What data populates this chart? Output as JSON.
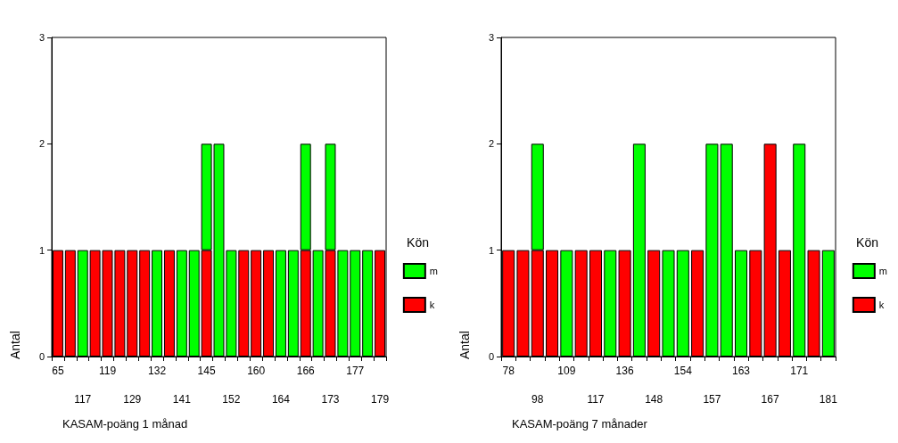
{
  "chart_data": [
    {
      "type": "bar",
      "stacked": true,
      "xlabel": "KASAM-poäng 1 månad",
      "ylabel": "Antal",
      "legend_title": "Kön",
      "legend": "right",
      "grid": false,
      "categories": [
        "65",
        null,
        "117",
        null,
        "119",
        null,
        "129",
        null,
        "132",
        null,
        "141",
        null,
        "145",
        null,
        "152",
        null,
        "160",
        null,
        "164",
        null,
        "166",
        null,
        "173",
        null,
        "177",
        null,
        "179"
      ],
      "ylim": [
        0,
        3
      ],
      "yticks": [
        0,
        1,
        2,
        3
      ],
      "series": [
        {
          "name": "k",
          "color": "#ff0000",
          "values": [
            1,
            1,
            0,
            1,
            1,
            1,
            1,
            1,
            0,
            1,
            0,
            0,
            1,
            0,
            0,
            1,
            1,
            1,
            0,
            0,
            1,
            0,
            1,
            0,
            0,
            0,
            1
          ]
        },
        {
          "name": "m",
          "color": "#00ff00",
          "values": [
            0,
            0,
            1,
            0,
            0,
            0,
            0,
            0,
            1,
            0,
            1,
            1,
            1,
            2,
            1,
            0,
            0,
            0,
            1,
            1,
            1,
            1,
            1,
            1,
            1,
            1,
            0
          ]
        }
      ]
    },
    {
      "type": "bar",
      "stacked": true,
      "xlabel": "KASAM-poäng 7 månader",
      "ylabel": "Antal",
      "legend_title": "Kön",
      "legend": "right",
      "grid": false,
      "categories": [
        "78",
        null,
        "98",
        null,
        "109",
        null,
        "117",
        null,
        "136",
        null,
        "148",
        null,
        "154",
        null,
        "157",
        null,
        "163",
        null,
        "167",
        null,
        "171",
        null,
        "181"
      ],
      "ylim": [
        0,
        3
      ],
      "yticks": [
        0,
        1,
        2,
        3
      ],
      "series": [
        {
          "name": "k",
          "color": "#ff0000",
          "values": [
            1,
            1,
            1,
            1,
            0,
            1,
            1,
            0,
            1,
            0,
            1,
            0,
            0,
            1,
            0,
            0,
            0,
            1,
            2,
            1,
            0,
            1,
            0
          ]
        },
        {
          "name": "m",
          "color": "#00ff00",
          "values": [
            0,
            0,
            1,
            0,
            1,
            0,
            0,
            1,
            0,
            2,
            0,
            1,
            1,
            0,
            2,
            2,
            1,
            0,
            0,
            0,
            2,
            0,
            1
          ]
        }
      ]
    }
  ]
}
